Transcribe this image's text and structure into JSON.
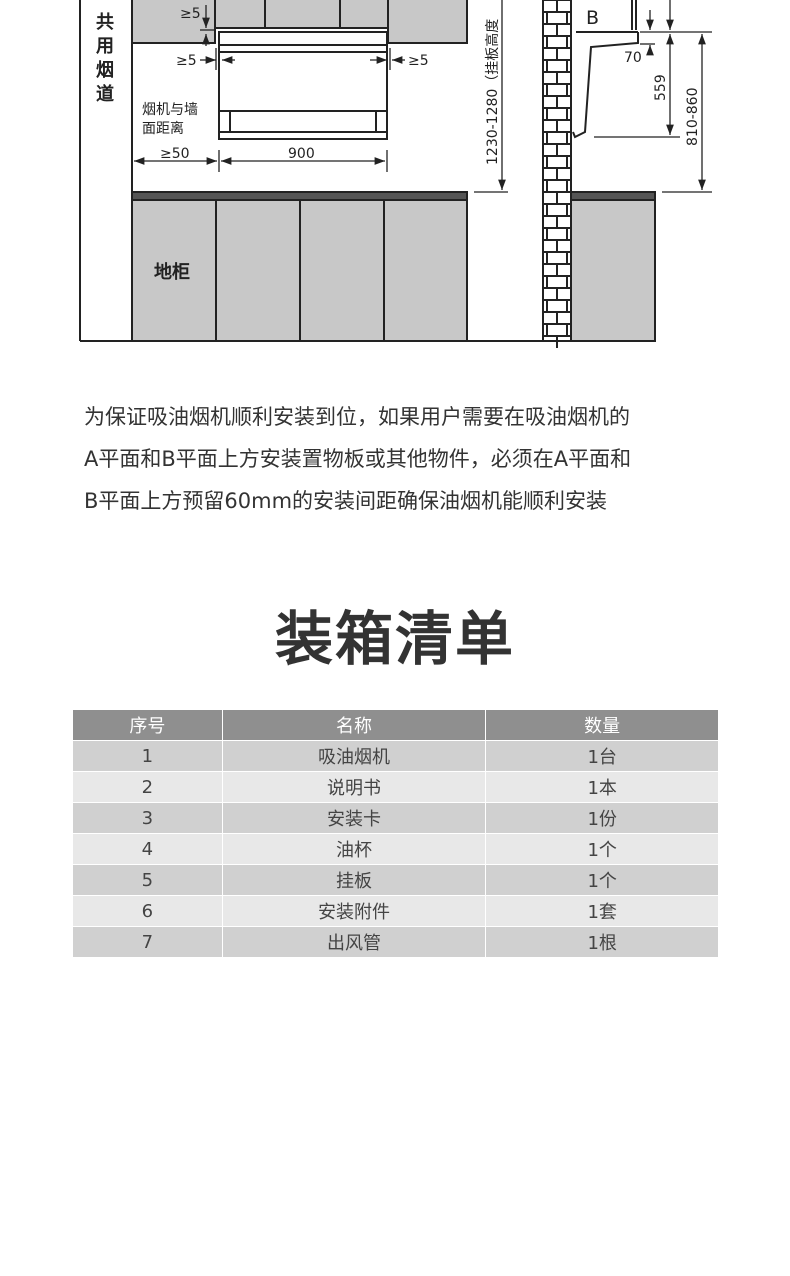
{
  "diagram": {
    "flue_label": [
      "共",
      "用",
      "烟",
      "道"
    ],
    "gap_top": "≥5",
    "gap_left": "≥5",
    "gap_right": "≥5",
    "wall_distance_line1": "烟机与墙",
    "wall_distance_line2": "面距离",
    "dist_wall": "≥50",
    "width": "900",
    "base_cabinet": "地柜",
    "plate_height": "1230-1280（挂板高度",
    "plane_b": "B",
    "dim_70": "70",
    "dim_559": "559",
    "dim_810_860": "810-860"
  },
  "description": [
    "为保证吸油烟机顺利安装到位，如果用户需要在吸油烟机的",
    "A平面和B平面上方安装置物板或其他物件，必须在A平面和",
    "B平面上方预留60mm的安装间距确保油烟机能顺利安装"
  ],
  "packing": {
    "title": "装箱清单",
    "headers": [
      "序号",
      "名称",
      "数量"
    ],
    "rows": [
      [
        "1",
        "吸油烟机",
        "1台"
      ],
      [
        "2",
        "说明书",
        "1本"
      ],
      [
        "3",
        "安装卡",
        "1份"
      ],
      [
        "4",
        "油杯",
        "1个"
      ],
      [
        "5",
        "挂板",
        "1个"
      ],
      [
        "6",
        "安装附件",
        "1套"
      ],
      [
        "7",
        "出风管",
        "1根"
      ]
    ]
  },
  "colors": {
    "header": "#8f8f8f",
    "row_odd": "#d0d0d0",
    "row_even": "#e8e8e8",
    "cabinet": "#c8c8c8",
    "countertop": "#555555"
  }
}
